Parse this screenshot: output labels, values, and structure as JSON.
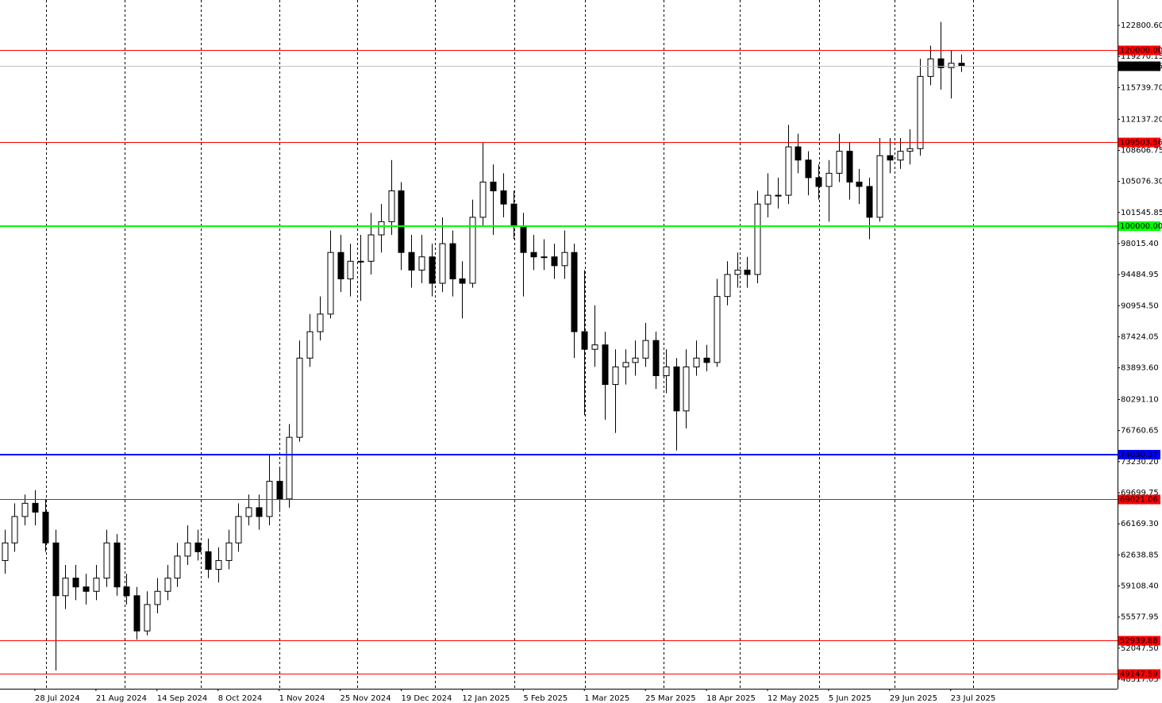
{
  "chart_data": {
    "type": "candlestick",
    "categories": [
      null,
      null,
      null,
      "28 Jul 2024",
      null,
      null,
      null,
      null,
      null,
      "21 Aug 2024",
      null,
      null,
      null,
      null,
      null,
      "14 Sep 2024",
      null,
      null,
      null,
      null,
      null,
      "8 Oct 2024",
      null,
      null,
      null,
      null,
      null,
      "1 Nov 2024",
      null,
      null,
      null,
      null,
      null,
      "25 Nov 2024",
      null,
      null,
      null,
      null,
      null,
      "19 Dec 2024",
      null,
      null,
      null,
      null,
      null,
      "12 Jan 2025",
      null,
      null,
      null,
      null,
      null,
      "5 Feb 2025",
      null,
      null,
      null,
      null,
      null,
      "1 Mar 2025",
      null,
      null,
      null,
      null,
      null,
      "25 Mar 2025",
      null,
      null,
      null,
      null,
      null,
      "18 Apr 2025",
      null,
      null,
      null,
      null,
      null,
      "12 May 2025",
      null,
      null,
      null,
      null,
      null,
      "5 Jun 2025",
      null,
      null,
      null,
      null,
      null,
      "29 Jun 2025",
      null,
      null,
      null,
      null,
      null,
      "23 Jul 2025",
      null
    ],
    "open": [
      62000,
      64000,
      67000,
      68500,
      67500,
      64000,
      58000,
      60000,
      59000,
      58500,
      60000,
      64000,
      59000,
      58000,
      54000,
      57000,
      58500,
      60000,
      62500,
      64000,
      63000,
      61000,
      62000,
      64000,
      67000,
      68000,
      67000,
      71000,
      69000,
      76000,
      85000,
      88000,
      90000,
      97000,
      94000,
      96000,
      96000,
      99000,
      100500,
      104000,
      97000,
      95000,
      96500,
      93500,
      98000,
      94000,
      93500,
      101000,
      105000,
      104000,
      102500,
      100000,
      97000,
      96500,
      96500,
      95500,
      97000,
      88000,
      86000,
      86500,
      82000,
      84000,
      84500,
      85000,
      87000,
      83000,
      84000,
      79000,
      84000,
      85000,
      84500,
      92000,
      94500,
      95000,
      94500,
      102500,
      103500,
      103500,
      109000,
      107500,
      105500,
      104500,
      106000,
      108500,
      105000,
      104500,
      101000,
      108000,
      107500,
      108500,
      108800,
      117000,
      119000,
      118000,
      118500
    ],
    "high": [
      65500,
      68500,
      69500,
      70000,
      69000,
      65500,
      61500,
      61500,
      60500,
      61500,
      65500,
      65000,
      60500,
      59000,
      58500,
      60000,
      61500,
      64000,
      66000,
      65500,
      64500,
      63500,
      65500,
      68500,
      69500,
      69500,
      74000,
      72500,
      77500,
      87000,
      90000,
      92000,
      99500,
      99000,
      98000,
      99000,
      101500,
      102500,
      107500,
      105000,
      99000,
      99000,
      98000,
      101000,
      99500,
      96000,
      103000,
      109500,
      107000,
      106000,
      104000,
      101500,
      99000,
      98500,
      98000,
      99500,
      98000,
      95000,
      91000,
      88000,
      86000,
      86000,
      87000,
      89000,
      88000,
      86000,
      85000,
      86000,
      87000,
      86500,
      94000,
      96000,
      97000,
      96500,
      104000,
      106000,
      105500,
      111500,
      110500,
      108500,
      107000,
      107500,
      110500,
      109500,
      106500,
      105500,
      110000,
      110000,
      110000,
      111000,
      119000,
      120500,
      123200,
      120000,
      119500
    ],
    "low": [
      60500,
      63000,
      66000,
      66000,
      63000,
      49500,
      56500,
      57500,
      57000,
      57500,
      59000,
      58000,
      57000,
      53000,
      53500,
      56000,
      57500,
      59000,
      61500,
      62000,
      60000,
      59500,
      61000,
      63000,
      66000,
      65500,
      66000,
      67500,
      68000,
      75500,
      84000,
      87000,
      89500,
      92500,
      92000,
      91500,
      94500,
      97000,
      99000,
      95000,
      93000,
      93500,
      92000,
      92500,
      92000,
      89500,
      93000,
      100000,
      99000,
      101000,
      98500,
      92000,
      95000,
      95000,
      94000,
      94000,
      85000,
      78500,
      84000,
      78000,
      76500,
      82000,
      83000,
      84000,
      81500,
      81000,
      74500,
      77000,
      83000,
      83500,
      84000,
      91000,
      93000,
      93000,
      93500,
      101000,
      102000,
      102500,
      106000,
      103500,
      103000,
      100500,
      105000,
      103000,
      102500,
      98500,
      100500,
      106000,
      106500,
      107000,
      108000,
      116000,
      115500,
      114500,
      117500
    ],
    "close": [
      64000,
      67000,
      68500,
      67500,
      64000,
      58000,
      60000,
      59000,
      58500,
      60000,
      64000,
      59000,
      58000,
      54000,
      57000,
      58500,
      60000,
      62500,
      64000,
      63000,
      61000,
      62000,
      64000,
      67000,
      68000,
      67000,
      71000,
      69000,
      76000,
      85000,
      88000,
      90000,
      97000,
      94000,
      96000,
      96000,
      99000,
      100500,
      104000,
      97000,
      95000,
      96500,
      93500,
      98000,
      94000,
      93500,
      101000,
      105000,
      104000,
      102500,
      100000,
      97000,
      96500,
      96500,
      95500,
      97000,
      88000,
      86000,
      86500,
      82000,
      84000,
      84500,
      85000,
      87000,
      83000,
      84000,
      79000,
      84000,
      85000,
      84500,
      92000,
      94500,
      95000,
      94500,
      102500,
      103500,
      103500,
      109000,
      107500,
      105500,
      104500,
      106000,
      108500,
      105000,
      104500,
      101000,
      108000,
      107500,
      108500,
      108800,
      117000,
      119000,
      118000,
      118500,
      118178.15
    ],
    "up_color": "#ffffff",
    "down_color": "#000000",
    "ylim": [
      47435,
      125685
    ],
    "yticks": [
      {
        "value": 122800.6,
        "label": "122800.60"
      },
      119270.15,
      {
        "value": 115739.7,
        "label": "115739.70"
      },
      {
        "value": 112137.2,
        "label": "112137.20"
      },
      108606.75,
      {
        "value": 105076.3,
        "label": "105076.30"
      },
      101545.85,
      {
        "value": 98015.4,
        "label": "98015.40"
      },
      94484.95,
      {
        "value": 90954.5,
        "label": "90954.50"
      },
      87424.05,
      {
        "value": 83893.6,
        "label": "83893.60"
      },
      {
        "value": 80291.1,
        "label": "80291.10"
      },
      76760.65,
      {
        "value": 73230.2,
        "label": "73230.20"
      },
      69699.75,
      {
        "value": 66169.3,
        "label": "66169.30"
      },
      62638.85,
      {
        "value": 59108.4,
        "label": "59108.40"
      },
      55577.95,
      {
        "value": 52047.5,
        "label": "52047.50"
      },
      48517.05
    ],
    "levels": [
      {
        "value": 120000,
        "label": "120000.00",
        "color": "#ff0000",
        "line_width": 1
      },
      {
        "value": 118178.15,
        "label": "118178.15",
        "color": "#000000",
        "line_color": "#c0c0c0",
        "line_width": 1
      },
      {
        "value": 109503.56,
        "label": "109503.56",
        "color": "#ff0000",
        "line_width": 1
      },
      {
        "value": 100000,
        "label": "100000.00",
        "color": "#00ff00",
        "line_width": 2
      },
      {
        "value": 74030.37,
        "label": "74030.37",
        "color": "#0000ff",
        "line_width": 2
      },
      {
        "value": 69021.06,
        "label": "69021.06",
        "color": "#ff0000",
        "line_width": 1
      },
      {
        "value": 52939.88,
        "label": "52939.88",
        "color": "#ff0000",
        "line_width": 1
      },
      {
        "value": 49147.59,
        "label": "49147.59",
        "color": "#ff0000",
        "line_width": 1
      }
    ],
    "grid": true
  }
}
